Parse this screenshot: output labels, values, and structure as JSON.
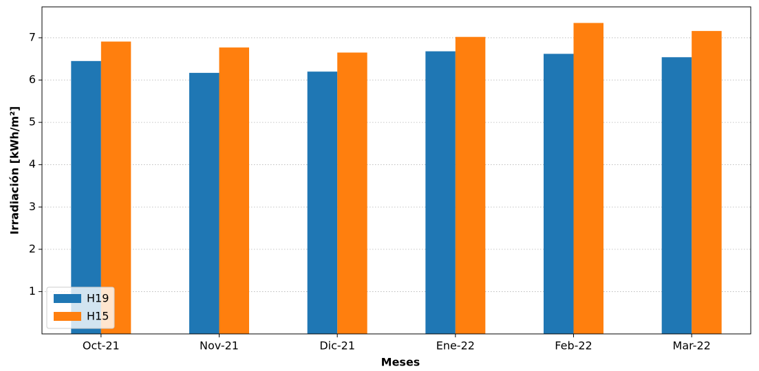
{
  "chart_data": {
    "type": "bar",
    "xlabel": "Meses",
    "ylabel": "Irradiación [kWh/m²]",
    "categories": [
      "Oct-21",
      "Nov-21",
      "Dic-21",
      "Ene-22",
      "Feb-22",
      "Mar-22"
    ],
    "series": [
      {
        "name": "H19",
        "color": "#1f77b4",
        "values": [
          6.45,
          6.17,
          6.2,
          6.68,
          6.62,
          6.54
        ]
      },
      {
        "name": "H15",
        "color": "#ff7f0e",
        "values": [
          6.91,
          6.77,
          6.65,
          7.02,
          7.35,
          7.16
        ]
      }
    ],
    "ylim": [
      0,
      7.73
    ],
    "yticks": [
      1,
      2,
      3,
      4,
      5,
      6,
      7
    ],
    "grid": true,
    "legend": "lower left"
  }
}
